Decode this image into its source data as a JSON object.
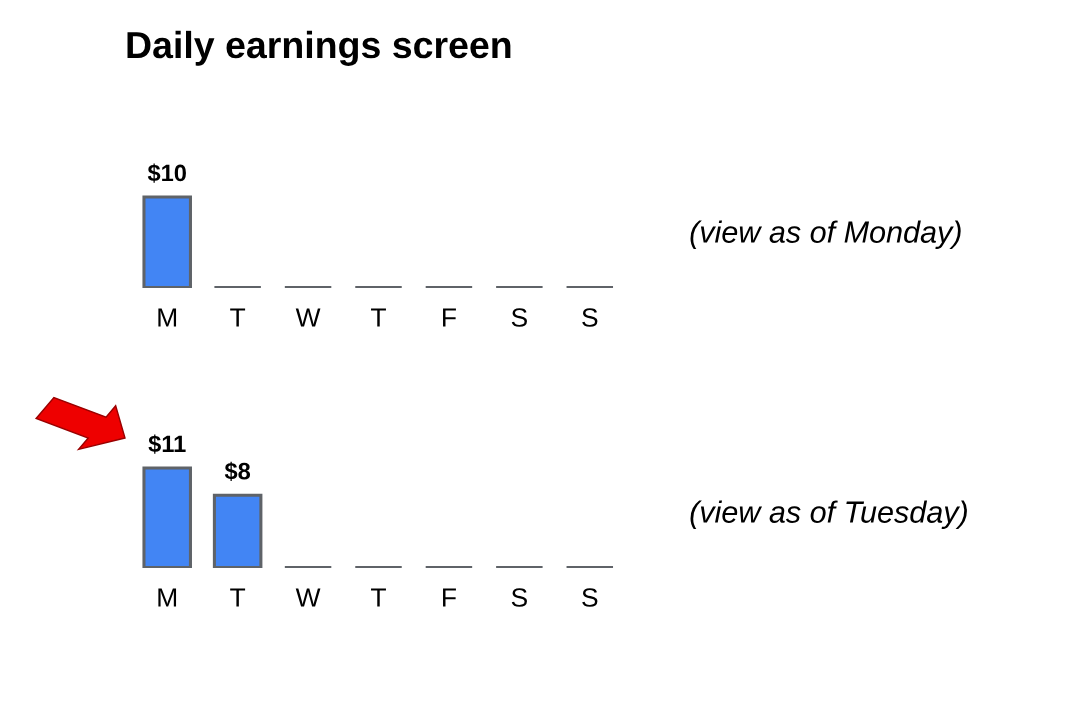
{
  "chart_data": [
    {
      "type": "bar",
      "title": "Daily earnings screen",
      "categories": [
        "M",
        "T",
        "W",
        "T",
        "F",
        "S",
        "S"
      ],
      "values": [
        10,
        null,
        null,
        null,
        null,
        null,
        null
      ],
      "color": "#4285f4",
      "value_labels": [
        "$10",
        null,
        null,
        null,
        null,
        null,
        null
      ],
      "annotations": [
        "(view as of Monday)"
      ]
    },
    {
      "type": "bar",
      "categories": [
        "M",
        "T",
        "W",
        "T",
        "F",
        "S",
        "S"
      ],
      "values": [
        11,
        8,
        null,
        null,
        null,
        null,
        null
      ],
      "color": "#4285f4",
      "value_labels": [
        "$11",
        "$8",
        null,
        null,
        null,
        null,
        null
      ],
      "annotations": [
        "(view as of Tuesday)"
      ]
    }
  ]
}
